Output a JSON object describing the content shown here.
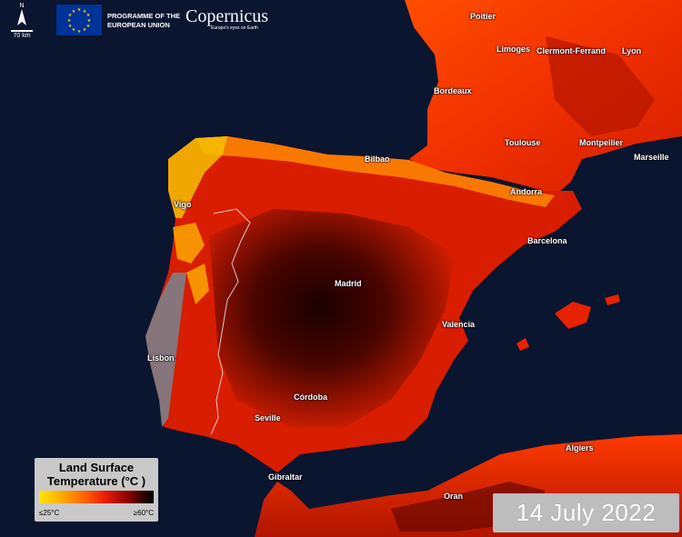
{
  "scale": {
    "north": "N",
    "distance": "70 km"
  },
  "logos": {
    "programme": [
      "PROGRAMME OF THE",
      "EUROPEAN UNION"
    ],
    "copernicus": "Copernicus",
    "copernicus_tagline": "Europe's eyes on Earth"
  },
  "cities": {
    "poitier": "Poitier",
    "limoges": "Limoges",
    "clermont": "Clermont-Ferrand",
    "lyon": "Lyon",
    "bordeaux": "Bordeaux",
    "toulouse": "Toulouse",
    "montpellier": "Montpellier",
    "marseille": "Marseille",
    "bilbao": "Bilbao",
    "andorra": "Andorra",
    "vigo": "Vigo",
    "barcelona": "Barcelona",
    "madrid": "Madrid",
    "valencia": "Valencia",
    "lisbon": "Lisbon",
    "cordoba": "Córdoba",
    "seville": "Seville",
    "gibraltar": "Gibraltar",
    "algiers": "Algiers",
    "oran": "Oran"
  },
  "legend": {
    "title_line1": "Land Surface",
    "title_line2": "Temperature (°C )",
    "min": "≤25°C",
    "max": "≥60°C",
    "colors": [
      "#ffe600",
      "#ff6a00",
      "#e81c00",
      "#8a0000",
      "#000000"
    ]
  },
  "date": "14 July 2022",
  "colors": {
    "sea": "#0a1530",
    "hot": "#e82000",
    "very_hot": "#3a0000",
    "cool": "#ffd000"
  }
}
